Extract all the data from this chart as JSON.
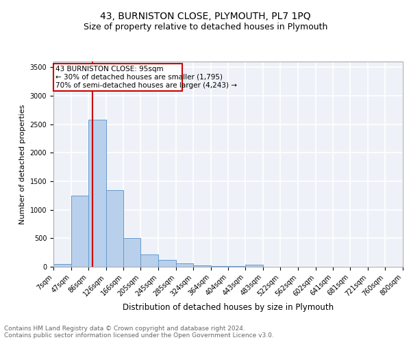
{
  "title1": "43, BURNISTON CLOSE, PLYMOUTH, PL7 1PQ",
  "title2": "Size of property relative to detached houses in Plymouth",
  "xlabel": "Distribution of detached houses by size in Plymouth",
  "ylabel": "Number of detached properties",
  "bar_color": "#b8d0eb",
  "bar_edge_color": "#6699cc",
  "background_color": "#eef2f8",
  "grid_color": "#ffffff",
  "annotation_line_color": "#cc0000",
  "annotation_box_color": "#cc0000",
  "annotation_line1": "43 BURNISTON CLOSE: 95sqm",
  "annotation_line2": "← 30% of detached houses are smaller (1,795)",
  "annotation_line3": "70% of semi-detached houses are larger (4,243) →",
  "property_size_sqm": 95,
  "bin_edges": [
    7,
    47,
    86,
    126,
    166,
    205,
    245,
    285,
    324,
    364,
    404,
    443,
    483,
    522,
    562,
    602,
    641,
    681,
    721,
    760,
    800
  ],
  "bin_labels": [
    "7sqm",
    "47sqm",
    "86sqm",
    "126sqm",
    "166sqm",
    "205sqm",
    "245sqm",
    "285sqm",
    "324sqm",
    "364sqm",
    "404sqm",
    "443sqm",
    "483sqm",
    "522sqm",
    "562sqm",
    "602sqm",
    "641sqm",
    "681sqm",
    "721sqm",
    "760sqm",
    "800sqm"
  ],
  "counts": [
    50,
    1250,
    2580,
    1340,
    500,
    215,
    120,
    55,
    25,
    10,
    10,
    35,
    5,
    3,
    2,
    2,
    1,
    1,
    1,
    1
  ],
  "ylim": [
    0,
    3600
  ],
  "yticks": [
    0,
    500,
    1000,
    1500,
    2000,
    2500,
    3000,
    3500
  ],
  "footer_text": "Contains HM Land Registry data © Crown copyright and database right 2024.\nContains public sector information licensed under the Open Government Licence v3.0.",
  "title1_fontsize": 10,
  "title2_fontsize": 9,
  "xlabel_fontsize": 8.5,
  "ylabel_fontsize": 8,
  "tick_fontsize": 7,
  "footer_fontsize": 6.5,
  "annot_fontsize": 7.5
}
